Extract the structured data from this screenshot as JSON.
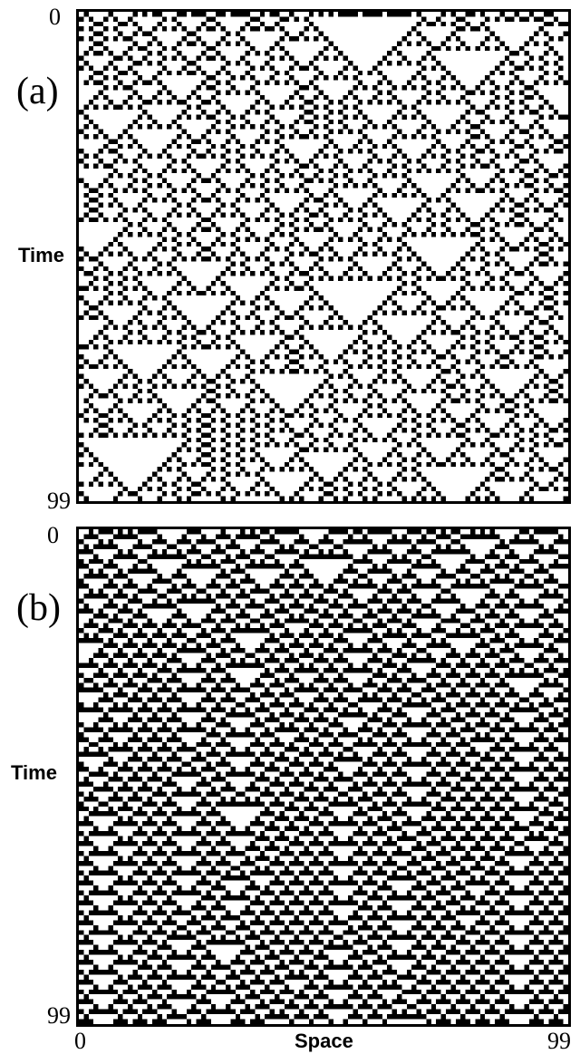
{
  "panels": [
    {
      "label": "(a)",
      "y_axis_title": "Time",
      "y_tick_top": "0",
      "y_tick_bottom": "99",
      "pattern": "dense-checkerboard-with-inverted-triangles"
    },
    {
      "label": "(b)",
      "y_axis_title": "Time",
      "y_tick_top": "0",
      "y_tick_bottom": "99",
      "pattern": "particles-and-domain-walls"
    }
  ],
  "x_axis": {
    "title": "Space",
    "tick_left": "0",
    "tick_right": "99"
  },
  "grid": {
    "cells": 100,
    "steps": 100
  },
  "colors": {
    "on": "#000000",
    "off": "#ffffff",
    "frame": "#000000"
  }
}
